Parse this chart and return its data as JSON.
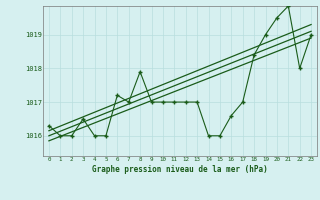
{
  "title": "Graphe pression niveau de la mer (hPa)",
  "bg_color": "#d6f0f0",
  "grid_color": "#b8dede",
  "line_color": "#1a5c1a",
  "x_ticks": [
    0,
    1,
    2,
    3,
    4,
    5,
    6,
    7,
    8,
    9,
    10,
    11,
    12,
    13,
    14,
    15,
    16,
    17,
    18,
    19,
    20,
    21,
    22,
    23
  ],
  "y_ticks": [
    1016,
    1017,
    1018,
    1019
  ],
  "ylim": [
    1015.4,
    1019.85
  ],
  "xlim": [
    -0.5,
    23.5
  ],
  "series1": [
    1016.3,
    1016.0,
    1016.0,
    1016.5,
    1016.0,
    1016.0,
    1017.2,
    1017.0,
    1017.9,
    1017.0,
    1017.0,
    1017.0,
    1017.0,
    1017.0,
    1016.0,
    1016.0,
    1016.6,
    1017.0,
    1018.4,
    1019.0,
    1019.5,
    1019.85,
    1018.0,
    1019.0
  ],
  "reg_starts": [
    1015.85,
    1016.0,
    1016.15
  ],
  "reg_ends": [
    1018.9,
    1019.1,
    1019.3
  ]
}
